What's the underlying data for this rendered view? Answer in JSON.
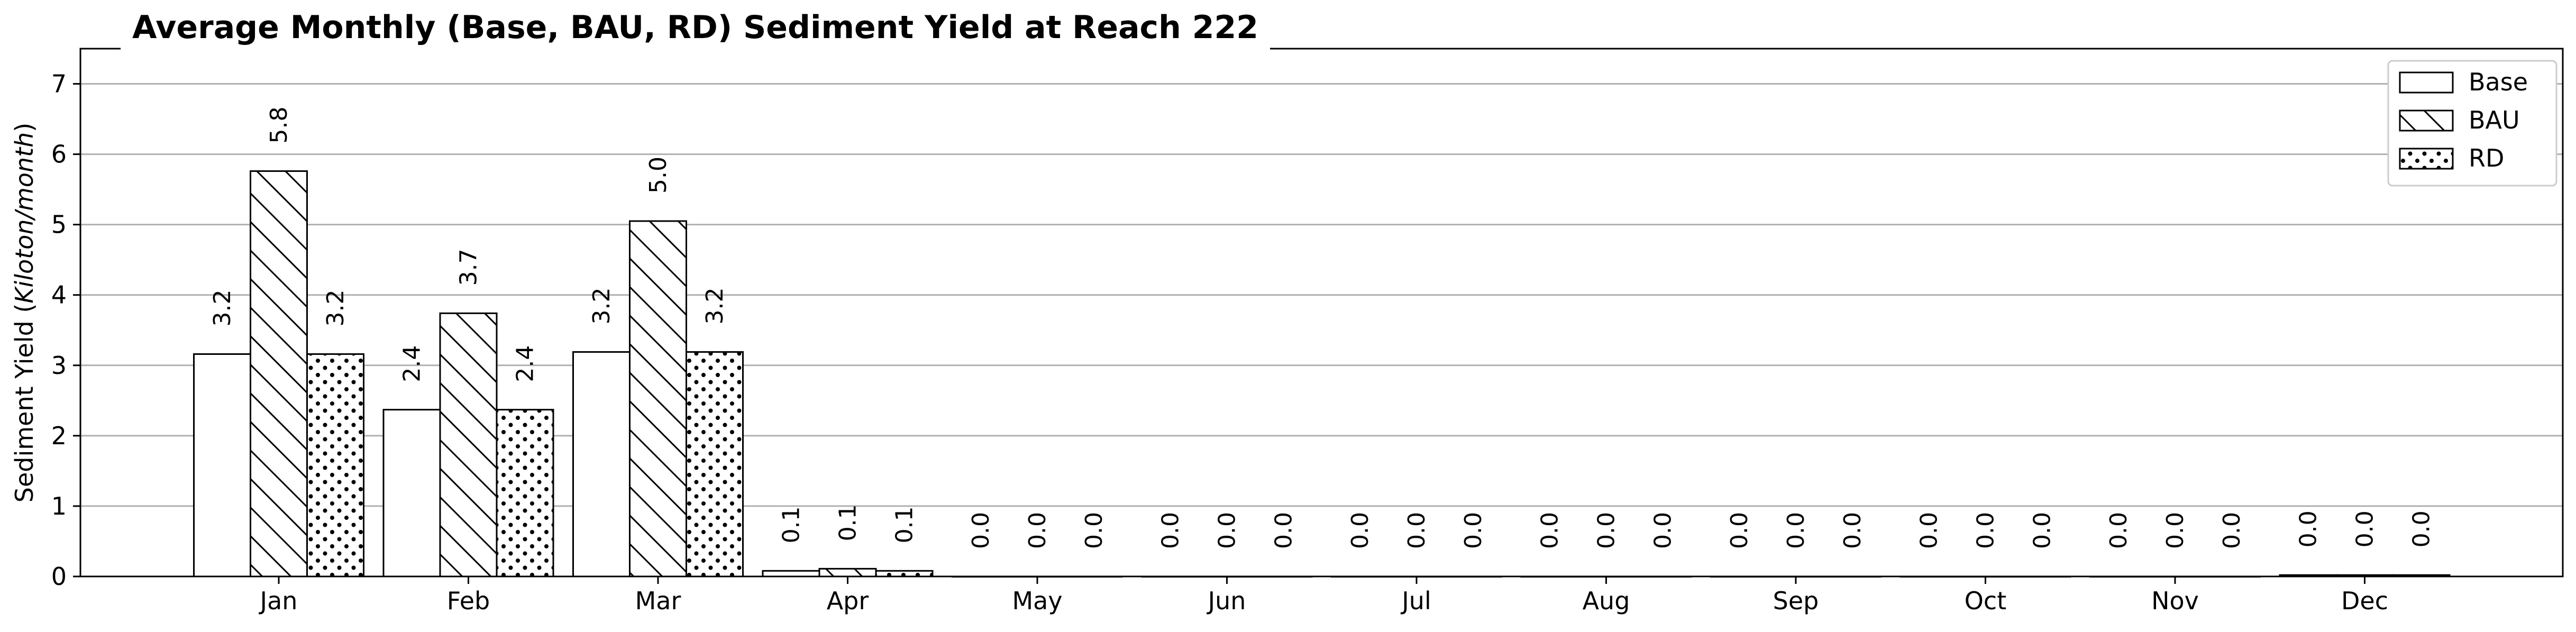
{
  "chart_data": {
    "type": "bar",
    "title": "Average Monthly (Base, BAU, RD) Sediment Yield at Reach 222",
    "xlabel": "",
    "ylabel_prefix": "Sediment Yield (",
    "ylabel_unit": "Kiloton/month",
    "ylabel_suffix": ")",
    "ylim": [
      0,
      7.5
    ],
    "yticks": [
      0,
      1,
      2,
      3,
      4,
      5,
      6,
      7
    ],
    "grid": "horizontal",
    "legend_position": "top-right",
    "categories": [
      "Jan",
      "Feb",
      "Mar",
      "Apr",
      "May",
      "Jun",
      "Jul",
      "Aug",
      "Sep",
      "Oct",
      "Nov",
      "Dec"
    ],
    "series": [
      {
        "name": "Base",
        "pattern": "none",
        "values": [
          3.16,
          2.37,
          3.19,
          0.08,
          0.0,
          0.0,
          0.0,
          0.0,
          0.0,
          0.0,
          0.0,
          0.02
        ],
        "labels": [
          "3.2",
          "2.4",
          "3.2",
          "0.1",
          "0.0",
          "0.0",
          "0.0",
          "0.0",
          "0.0",
          "0.0",
          "0.0",
          "0.0"
        ]
      },
      {
        "name": "BAU",
        "pattern": "diagonal-hatch",
        "values": [
          5.76,
          3.74,
          5.05,
          0.11,
          0.0,
          0.0,
          0.0,
          0.0,
          0.0,
          0.0,
          0.0,
          0.02
        ],
        "labels": [
          "5.8",
          "3.7",
          "5.0",
          "0.1",
          "0.0",
          "0.0",
          "0.0",
          "0.0",
          "0.0",
          "0.0",
          "0.0",
          "0.0"
        ]
      },
      {
        "name": "RD",
        "pattern": "dots",
        "values": [
          3.16,
          2.37,
          3.19,
          0.08,
          0.0,
          0.0,
          0.0,
          0.0,
          0.0,
          0.0,
          0.0,
          0.02
        ],
        "labels": [
          "3.2",
          "2.4",
          "3.2",
          "0.1",
          "0.0",
          "0.0",
          "0.0",
          "0.0",
          "0.0",
          "0.0",
          "0.0",
          "0.0"
        ]
      }
    ]
  }
}
